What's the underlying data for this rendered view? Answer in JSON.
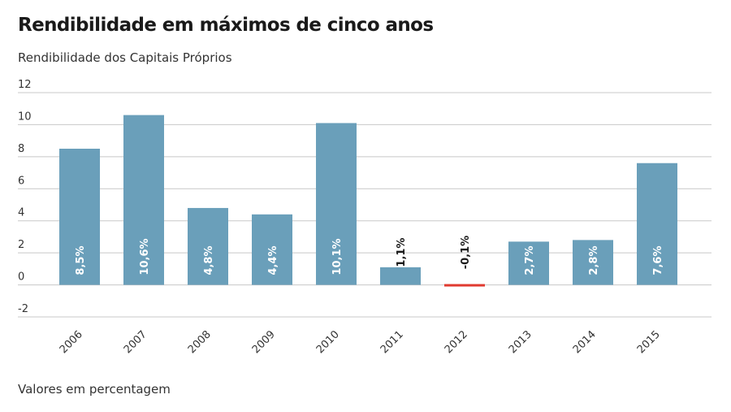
{
  "chart_data": {
    "type": "bar",
    "title": "Rendibilidade em máximos de cinco anos",
    "subtitle": "Rendibilidade dos Capitais Próprios",
    "footnote": "Valores em percentagem",
    "xlabel": "",
    "ylabel": "",
    "ylim": [
      -2,
      12
    ],
    "yticks": [
      12,
      10,
      8,
      6,
      4,
      2,
      0,
      -2
    ],
    "grid": true,
    "categories": [
      "2006",
      "2007",
      "2008",
      "2009",
      "2010",
      "2011",
      "2012",
      "2013",
      "2014",
      "2015"
    ],
    "values": [
      8.5,
      10.6,
      4.8,
      4.4,
      10.1,
      1.1,
      -0.1,
      2.7,
      2.8,
      7.6
    ],
    "labels": [
      "8,5%",
      "10,6%",
      "4,8%",
      "4,4%",
      "10,1%",
      "1,1%",
      "-0,1%",
      "2,7%",
      "2,8%",
      "7,6%"
    ],
    "colors": {
      "positive": "#6a9fba",
      "negative": "#e03a2f",
      "grid": "#c8c8c8",
      "label_inside": "#ffffff",
      "label_outside": "#1a1a1a"
    }
  }
}
